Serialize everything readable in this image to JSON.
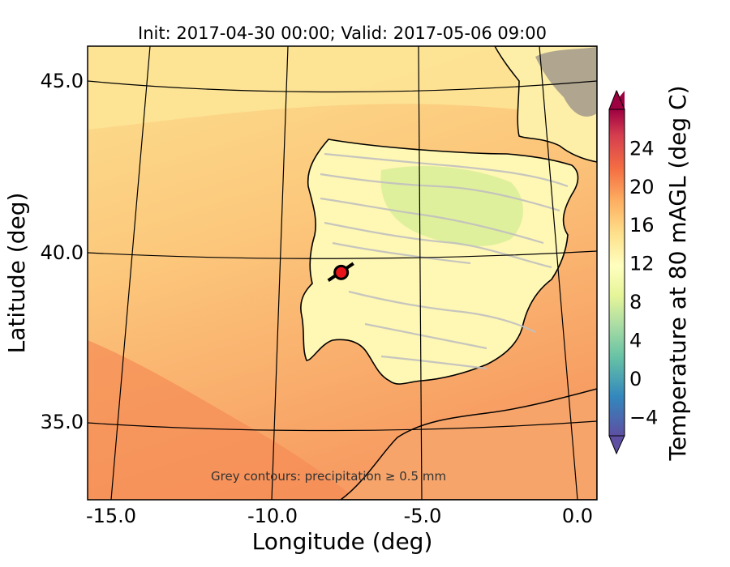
{
  "title": "Init: 2017-04-30 00:00; Valid: 2017-05-06 09:00",
  "axes": {
    "xlabel": "Longitude (deg)",
    "ylabel": "Latitude (deg)",
    "xticks": [
      "-15.0",
      "-10.0",
      "-5.0",
      "0.0"
    ],
    "yticks": [
      "45.0",
      "40.0",
      "35.0"
    ]
  },
  "colorbar": {
    "label": "Temperature at 80 mAGL (deg C)",
    "ticks": [
      "24",
      "20",
      "16",
      "12",
      "8",
      "4",
      "0",
      "−4"
    ],
    "tick_values": [
      24,
      20,
      16,
      12,
      8,
      4,
      0,
      -4
    ],
    "range": [
      -6,
      28
    ],
    "palette": [
      "#5e4fa2",
      "#3288bd",
      "#66c2a5",
      "#abdda4",
      "#e6f598",
      "#ffffbf",
      "#fee08b",
      "#fdae61",
      "#f46d43",
      "#d53e4f",
      "#9e0142"
    ]
  },
  "note": "Grey contours: precipitation ≥ 0.5 mm",
  "marker": {
    "lon": -7.6,
    "lat": 39.4,
    "fill": "#e8141a"
  },
  "colors": {
    "sea_warm": "#f79c62",
    "sea_mild": "#fcc87c",
    "land_cool": "#fff9b8",
    "plateau": "#d9ee98",
    "precip_contour": "#c0c0c0"
  }
}
